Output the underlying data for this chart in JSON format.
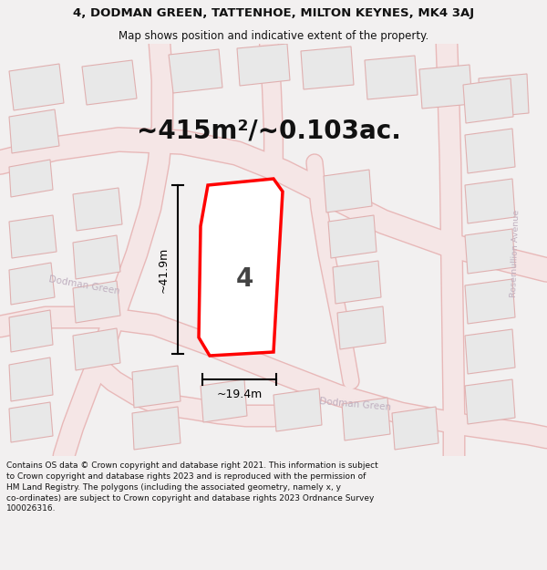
{
  "title_line1": "4, DODMAN GREEN, TATTENHOE, MILTON KEYNES, MK4 3AJ",
  "title_line2": "Map shows position and indicative extent of the property.",
  "area_text": "~415m²/~0.103ac.",
  "dim_width": "~19.4m",
  "dim_height": "~41.9m",
  "plot_number": "4",
  "footer": "Contains OS data © Crown copyright and database right 2021. This information is subject to Crown copyright and database rights 2023 and is reproduced with the permission of HM Land Registry. The polygons (including the associated geometry, namely x, y co-ordinates) are subject to Crown copyright and database rights 2023 Ordnance Survey 100026316.",
  "outer_bg": "#f2f0f0",
  "map_bg": "#ffffff",
  "road_fill": "#f5e6e6",
  "road_edge": "#e8b8b8",
  "building_fill": "#e8e8e8",
  "building_edge": "#e0b0b0",
  "prop_fill": "#ffffff",
  "prop_edge": "#ff0000",
  "ann_color": "#000000",
  "street_color": "#c0b0c0",
  "title_fontsize": 9.5,
  "subtitle_fontsize": 8.5,
  "footer_fontsize": 6.5,
  "area_fontsize": 20,
  "dim_fontsize": 9,
  "number_fontsize": 20
}
